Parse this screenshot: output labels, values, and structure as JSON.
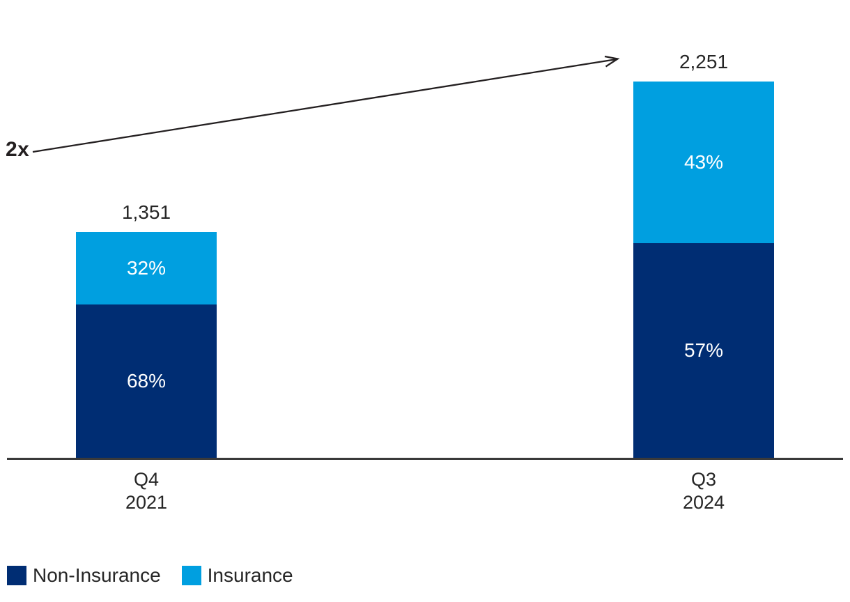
{
  "chart_data": {
    "type": "bar",
    "stacked": true,
    "grid": false,
    "legend_position": "bottom-left",
    "categories": [
      "Q4 2021",
      "Q3 2024"
    ],
    "bars": [
      {
        "category": "Q4 2021",
        "category_lines": [
          "Q4",
          "2021"
        ],
        "total_value": 1351,
        "total_label": "1,351",
        "segments": [
          {
            "series": "Insurance",
            "pct": 32,
            "label": "32%"
          },
          {
            "series": "Non-Insurance",
            "pct": 68,
            "label": "68%"
          }
        ]
      },
      {
        "category": "Q3 2024",
        "category_lines": [
          "Q3",
          "2024"
        ],
        "total_value": 2251,
        "total_label": "2,251",
        "segments": [
          {
            "series": "Insurance",
            "pct": 43,
            "label": "43%"
          },
          {
            "series": "Non-Insurance",
            "pct": 57,
            "label": "57%"
          }
        ]
      }
    ],
    "series": [
      {
        "name": "Non-Insurance",
        "color": "#002d73"
      },
      {
        "name": "Insurance",
        "color": "#009fe0"
      }
    ],
    "annotation": {
      "label": "2x"
    }
  },
  "legend": {
    "items": [
      {
        "label": "Non-Insurance",
        "color": "#002d73"
      },
      {
        "label": "Insurance",
        "color": "#009fe0"
      }
    ]
  },
  "colors": {
    "non_insurance": "#002d73",
    "insurance": "#009fe0",
    "text": "#262626",
    "label_on_bar": "#ffffff",
    "axis": "#3a3a3a",
    "arrow": "#231f20",
    "background": "#ffffff"
  }
}
